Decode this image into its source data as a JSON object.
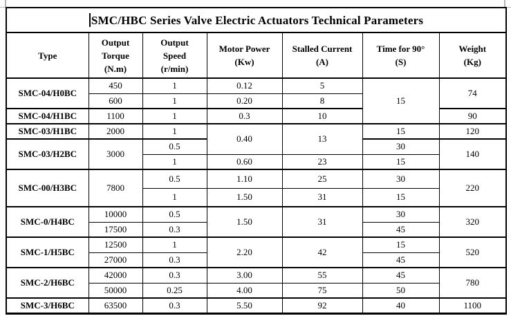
{
  "title": "SMC/HBC Series Valve Electric Actuators Technical Parameters",
  "colors": {
    "table_border": "#000000",
    "text": "#000000",
    "background": "#fdfdfd",
    "corner_mark": "#b4b4b4"
  },
  "table": {
    "columns": [
      {
        "id": "type",
        "lines": [
          "Type"
        ]
      },
      {
        "id": "torque",
        "lines": [
          "Output",
          "Torque",
          "(N.m)"
        ]
      },
      {
        "id": "speed",
        "lines": [
          "Output",
          "Speed",
          "(r/min)"
        ]
      },
      {
        "id": "power",
        "lines": [
          "Motor Power",
          "(Kw)"
        ]
      },
      {
        "id": "current",
        "lines": [
          "Stalled Current",
          "(A)"
        ]
      },
      {
        "id": "time",
        "lines": [
          "Time for 90°",
          "(S)"
        ]
      },
      {
        "id": "weight",
        "lines": [
          "Weight",
          "(Kg)"
        ]
      }
    ],
    "rows": [
      {
        "cells": [
          {
            "col": "type",
            "text": "SMC-04/H0BC",
            "rowspan": 2
          },
          {
            "col": "torque",
            "text": "450"
          },
          {
            "col": "speed",
            "text": "1"
          },
          {
            "col": "power",
            "text": "0.12"
          },
          {
            "col": "current",
            "text": "5"
          },
          {
            "col": "time",
            "text": "15",
            "rowspan": 3
          },
          {
            "col": "weight",
            "text": "74",
            "rowspan": 2
          }
        ]
      },
      {
        "cells": [
          {
            "col": "torque",
            "text": "600"
          },
          {
            "col": "speed",
            "text": "1"
          },
          {
            "col": "power",
            "text": "0.20"
          },
          {
            "col": "current",
            "text": "8"
          }
        ]
      },
      {
        "cells": [
          {
            "col": "type",
            "text": "SMC-04/H1BC"
          },
          {
            "col": "torque",
            "text": "1100"
          },
          {
            "col": "speed",
            "text": "1"
          },
          {
            "col": "power",
            "text": "0.3"
          },
          {
            "col": "current",
            "text": "10"
          },
          {
            "col": "weight",
            "text": "90"
          }
        ]
      },
      {
        "cells": [
          {
            "col": "type",
            "text": "SMC-03/H1BC"
          },
          {
            "col": "torque",
            "text": "2000"
          },
          {
            "col": "speed",
            "text": "1"
          },
          {
            "col": "power",
            "text": "0.40",
            "rowspan": 2
          },
          {
            "col": "current",
            "text": "13",
            "rowspan": 2
          },
          {
            "col": "time",
            "text": "15"
          },
          {
            "col": "weight",
            "text": "120"
          }
        ]
      },
      {
        "cells": [
          {
            "col": "type",
            "text": "SMC-03/H2BC",
            "rowspan": 2
          },
          {
            "col": "torque",
            "text": "3000",
            "rowspan": 2
          },
          {
            "col": "speed",
            "text": "0.5"
          },
          {
            "col": "time",
            "text": "30"
          },
          {
            "col": "weight",
            "text": "140",
            "rowspan": 2
          }
        ]
      },
      {
        "cells": [
          {
            "col": "speed",
            "text": "1"
          },
          {
            "col": "power",
            "text": "0.60"
          },
          {
            "col": "current",
            "text": "23"
          },
          {
            "col": "time",
            "text": "15"
          }
        ]
      },
      {
        "cells": [
          {
            "col": "type",
            "text": "SMC-00/H3BC",
            "rowspan": 2
          },
          {
            "col": "torque",
            "text": "7800",
            "rowspan": 2
          },
          {
            "col": "speed",
            "text": "0.5"
          },
          {
            "col": "power",
            "text": "1.10"
          },
          {
            "col": "current",
            "text": "25"
          },
          {
            "col": "time",
            "text": "30"
          },
          {
            "col": "weight",
            "text": "220",
            "rowspan": 2
          }
        ]
      },
      {
        "cells": [
          {
            "col": "speed",
            "text": "1"
          },
          {
            "col": "power",
            "text": "1.50"
          },
          {
            "col": "current",
            "text": "31"
          },
          {
            "col": "time",
            "text": "15"
          }
        ]
      },
      {
        "cells": [
          {
            "col": "type",
            "text": "SMC-0/H4BC",
            "rowspan": 2
          },
          {
            "col": "torque",
            "text": "10000"
          },
          {
            "col": "speed",
            "text": "0.5"
          },
          {
            "col": "power",
            "text": "1.50",
            "rowspan": 2
          },
          {
            "col": "current",
            "text": "31",
            "rowspan": 2
          },
          {
            "col": "time",
            "text": "30"
          },
          {
            "col": "weight",
            "text": "320",
            "rowspan": 2
          }
        ]
      },
      {
        "cells": [
          {
            "col": "torque",
            "text": "17500"
          },
          {
            "col": "speed",
            "text": "0.3"
          },
          {
            "col": "time",
            "text": "45"
          }
        ]
      },
      {
        "cells": [
          {
            "col": "type",
            "text": "SMC-1/H5BC",
            "rowspan": 2
          },
          {
            "col": "torque",
            "text": "12500"
          },
          {
            "col": "speed",
            "text": "1"
          },
          {
            "col": "power",
            "text": "2.20",
            "rowspan": 2
          },
          {
            "col": "current",
            "text": "42",
            "rowspan": 2
          },
          {
            "col": "time",
            "text": "15"
          },
          {
            "col": "weight",
            "text": "520",
            "rowspan": 2
          }
        ]
      },
      {
        "cells": [
          {
            "col": "torque",
            "text": "27000"
          },
          {
            "col": "speed",
            "text": "0.3"
          },
          {
            "col": "time",
            "text": "45"
          }
        ]
      },
      {
        "cells": [
          {
            "col": "type",
            "text": "SMC-2/H6BC",
            "rowspan": 2
          },
          {
            "col": "torque",
            "text": "42000"
          },
          {
            "col": "speed",
            "text": "0.3"
          },
          {
            "col": "power",
            "text": "3.00"
          },
          {
            "col": "current",
            "text": "55"
          },
          {
            "col": "time",
            "text": "45"
          },
          {
            "col": "weight",
            "text": "780",
            "rowspan": 2
          }
        ]
      },
      {
        "cells": [
          {
            "col": "torque",
            "text": "50000"
          },
          {
            "col": "speed",
            "text": "0.25"
          },
          {
            "col": "power",
            "text": "4.00"
          },
          {
            "col": "current",
            "text": "75"
          },
          {
            "col": "time",
            "text": "50"
          }
        ]
      },
      {
        "cells": [
          {
            "col": "type",
            "text": "SMC-3/H6BC"
          },
          {
            "col": "torque",
            "text": "63500"
          },
          {
            "col": "speed",
            "text": "0.3"
          },
          {
            "col": "power",
            "text": "5.50"
          },
          {
            "col": "current",
            "text": "92"
          },
          {
            "col": "time",
            "text": "40"
          },
          {
            "col": "weight",
            "text": "1100"
          }
        ]
      }
    ]
  }
}
